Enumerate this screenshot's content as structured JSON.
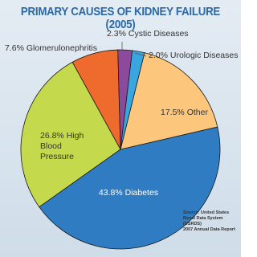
{
  "chart_data": {
    "type": "pie",
    "title": "PRIMARY CAUSES OF KIDNEY FAILURE (2005)",
    "categories": [
      "Cystic Diseases",
      "Urologic Diseases",
      "Other",
      "Diabetes",
      "High Blood Pressure",
      "Glomerulonephritis"
    ],
    "values": [
      2.3,
      2.0,
      17.5,
      43.8,
      26.8,
      7.6
    ],
    "value_labels": [
      "2.3%",
      "2.0%",
      "17.5%",
      "43.8%",
      "26.8%",
      "7.6%"
    ],
    "colors": [
      "#8b4a9c",
      "#3aa6df",
      "#fcc67c",
      "#2f7cc3",
      "#c5d94c",
      "#ee6a2d"
    ],
    "source": [
      "Source: United States",
      "Renal Data System (USRDS)",
      "2007 Annual Data Report"
    ]
  }
}
